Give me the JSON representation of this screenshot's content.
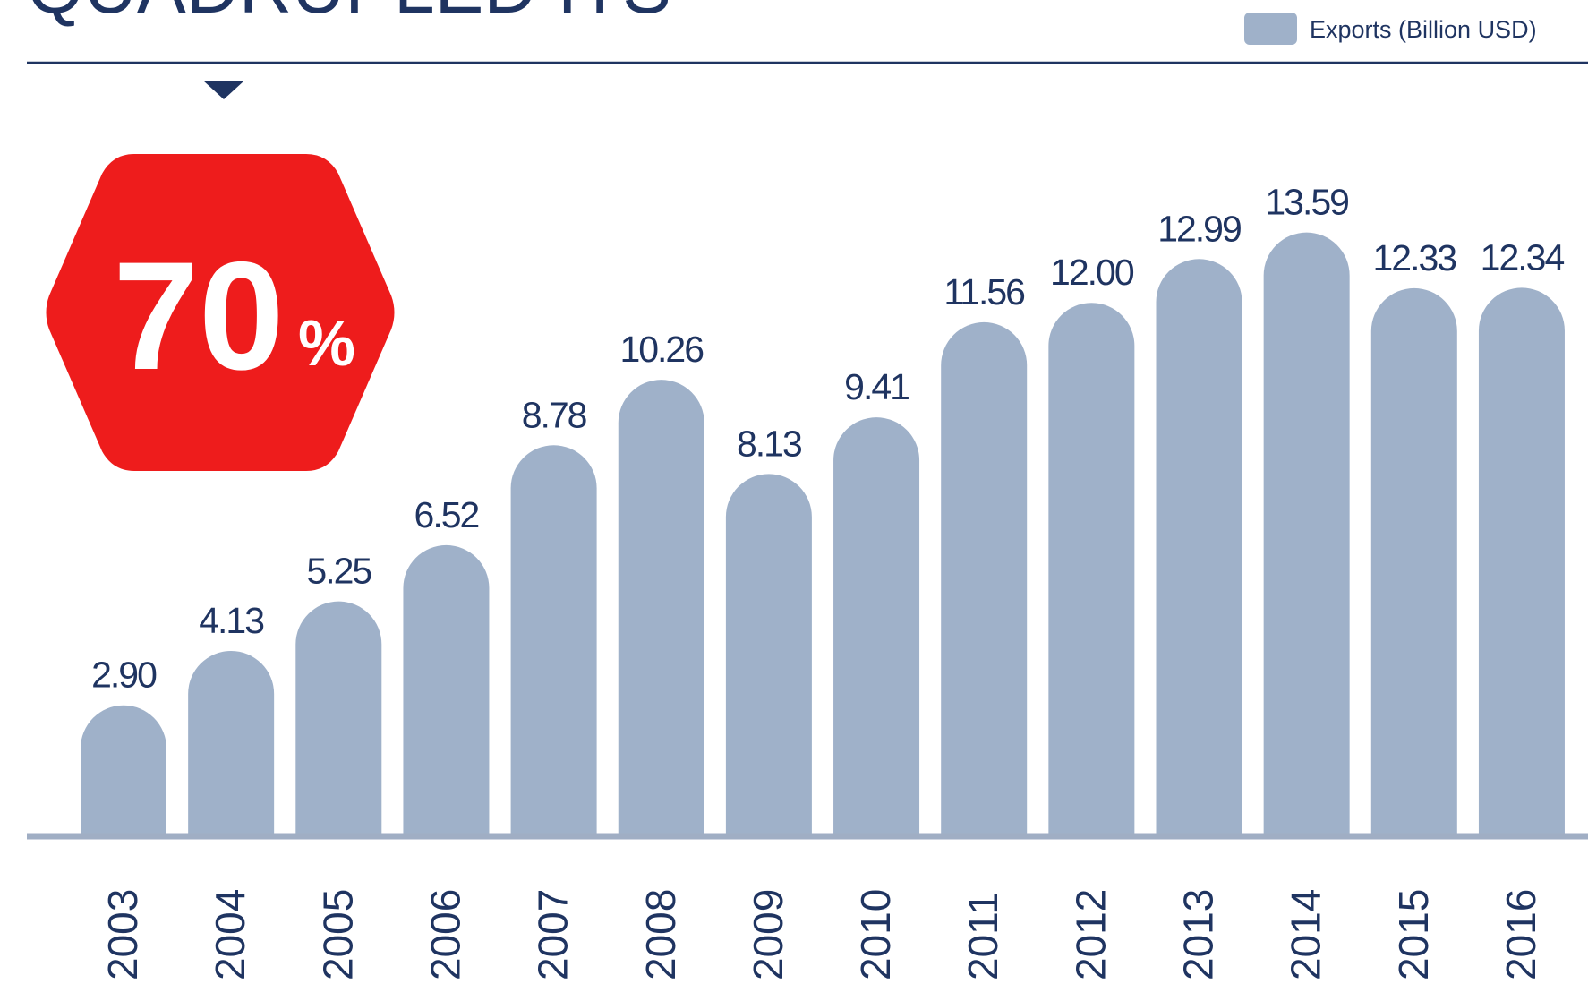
{
  "chart_data": {
    "type": "bar",
    "title": "QUADRUPLED ITS",
    "annotation": {
      "number": "70",
      "unit": "%"
    },
    "categories": [
      "2003",
      "2004",
      "2005",
      "2006",
      "2007",
      "2008",
      "2009",
      "2010",
      "2011",
      "2012",
      "2013",
      "2014",
      "2015",
      "2016"
    ],
    "series": [
      {
        "name": "Exports (Billion USD)",
        "color": "#9fb1c9",
        "values": [
          2.9,
          4.13,
          5.25,
          6.52,
          8.78,
          10.26,
          8.13,
          9.41,
          11.56,
          12.0,
          12.99,
          13.59,
          12.33,
          12.34
        ],
        "value_labels": [
          "2.90",
          "4.13",
          "5.25",
          "6.52",
          "8.78",
          "10.26",
          "8.13",
          "9.41",
          "11.56",
          "12.00",
          "12.99",
          "13.59",
          "12.33",
          "12.34"
        ]
      }
    ],
    "ylim": [
      0,
      15
    ],
    "legend": "top-right"
  }
}
